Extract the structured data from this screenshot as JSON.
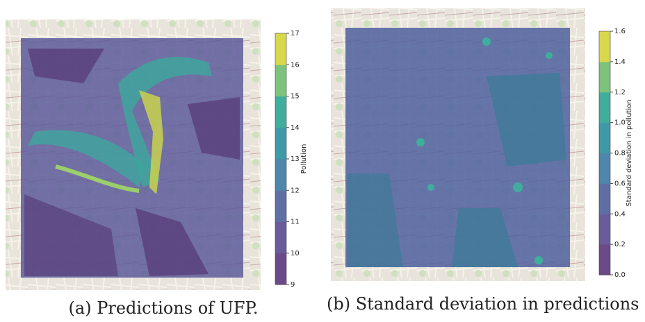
{
  "panels": [
    {
      "caption": "(a) Predictions of UFP.",
      "colorbar": {
        "label": "Pollution",
        "lim": [
          9,
          17
        ],
        "ticks": [
          9,
          10,
          11,
          12,
          13,
          14,
          15,
          16,
          17
        ],
        "colors": [
          "#6c4a8a",
          "#6a5b9a",
          "#5f6fa6",
          "#4f86ab",
          "#3f9aa8",
          "#3fae9c",
          "#7cc47c",
          "#d9d84a"
        ]
      }
    },
    {
      "caption": "(b) Standard deviation in predictions of",
      "colorbar": {
        "label": "Standard deviation in pollution",
        "lim": [
          0,
          1.6
        ],
        "ticks": [
          {
            "value": 0,
            "label": "0.0"
          },
          0.2,
          0.4,
          0.6,
          0.8,
          {
            "value": 1,
            "label": "1.0"
          },
          1.2,
          1.4,
          1.6
        ],
        "colors": [
          "#6c4a8a",
          "#6a5b9a",
          "#5f6fa6",
          "#4f86ab",
          "#3f9aa8",
          "#3fae9c",
          "#7cc47c",
          "#d9d84a"
        ]
      }
    }
  ]
}
